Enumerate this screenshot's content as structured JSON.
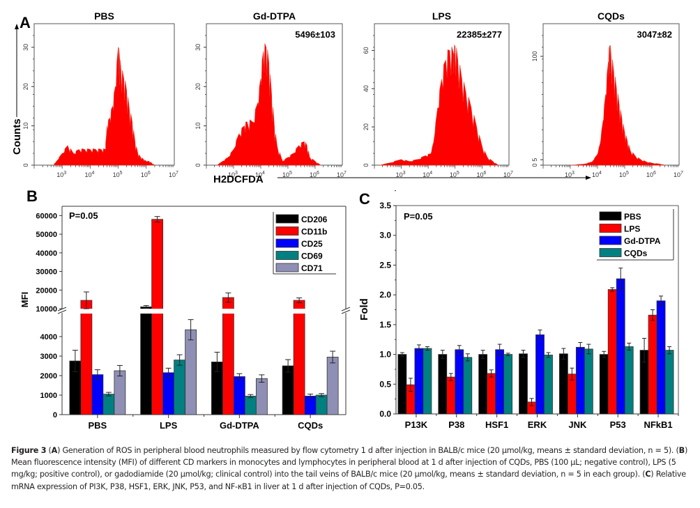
{
  "figure": {
    "panel_labels": {
      "a": "A",
      "b": "B",
      "c": "C"
    },
    "caption": {
      "figure_label": "Figure 3",
      "segments": [
        {
          "t": "Figure 3",
          "b": true
        },
        {
          "t": " (",
          "b": false
        },
        {
          "t": "A",
          "b": true
        },
        {
          "t": ") Generation of ROS in peripheral blood neutrophils measured by flow cytometry 1 d after injection in BALB/c mice (20 μmol/kg, means ± standard deviation, n = 5). (",
          "b": false
        },
        {
          "t": "B",
          "b": true
        },
        {
          "t": ") Mean fluorescence intensity (MFI) of different CD markers in monocytes and lymphocytes in peripheral blood at 1 d after injection of CQDs, PBS (100 μL; negative control), LPS (5 mg/kg; positive control), or gadodiamide (20 μmol/kg; clinical control) into the tail veins of BALB/c mice (20 μmol/kg, means ± standard deviation, n = 5 in each group). (",
          "b": false
        },
        {
          "t": "C",
          "b": true
        },
        {
          "t": ") Relative mRNA expression of PI3K, P38, HSF1, ERK, JNK, P53, and NF-κB1 in liver at 1 d after injection of CQDs, P=0.05.",
          "b": false
        }
      ]
    }
  },
  "colors": {
    "histogram_fill": "#ff0000",
    "black": "#000000",
    "red": "#ff0000",
    "blue": "#0000ff",
    "teal": "#008080",
    "lavender": "#8f8fb5"
  },
  "chart_data": [
    {
      "id": "A",
      "type": "area",
      "subtype": "flow-cytometry-histograms",
      "ylabel": "Counts",
      "xlabel": "H2DCFDA",
      "xscale": "log",
      "xlim": [
        100,
        10000000
      ],
      "xticks": [
        "10^3",
        "10^4",
        "10^5",
        "10^6",
        "10^7"
      ],
      "panels": [
        {
          "title": "PBS",
          "annotation": "",
          "ylim": [
            0,
            36
          ],
          "yticks": [
            0,
            10,
            20,
            30
          ],
          "x": [
            2.7,
            2.8,
            3.0,
            3.2,
            3.4,
            3.6,
            3.8,
            4.0,
            4.2,
            4.4,
            4.55,
            4.6,
            4.7,
            4.8,
            4.9,
            5.0,
            5.05,
            5.1,
            5.2,
            5.3,
            5.4,
            5.5,
            5.6,
            5.7,
            5.8,
            5.9,
            6.0,
            6.1,
            6.2,
            6.3
          ],
          "y": [
            0,
            1,
            3,
            5,
            3,
            4,
            4,
            4,
            4,
            4,
            4,
            10,
            12,
            15,
            20,
            30,
            27,
            24,
            22,
            19,
            14,
            11,
            6,
            3,
            2,
            1.5,
            1,
            1,
            0.5,
            0
          ]
        },
        {
          "title": "Gd-DTPA",
          "annotation": "5496±103",
          "ylim": [
            0,
            36
          ],
          "yticks": [
            0,
            10,
            20,
            30
          ],
          "x": [
            2.4,
            2.6,
            2.8,
            3.0,
            3.2,
            3.4,
            3.5,
            3.7,
            3.9,
            4.0,
            4.1,
            4.2,
            4.3,
            4.4,
            4.5,
            4.6,
            4.8,
            5.0,
            5.2,
            5.4,
            5.6,
            5.7,
            5.8,
            6.0,
            6.2
          ],
          "y": [
            0,
            1,
            2,
            4,
            8,
            10,
            11,
            11,
            16,
            22,
            29,
            30,
            26,
            18,
            10,
            5,
            1,
            2,
            3,
            5,
            6,
            5,
            2,
            1,
            0
          ]
        },
        {
          "title": "LPS",
          "annotation": "22385±277",
          "ylim": [
            0,
            74
          ],
          "yticks": [
            0,
            20,
            40,
            60
          ],
          "x": [
            2.2,
            2.5,
            3.0,
            3.3,
            3.6,
            3.9,
            4.1,
            4.2,
            4.35,
            4.5,
            4.65,
            4.8,
            4.95,
            5.0,
            5.1,
            5.25,
            5.4,
            5.6,
            5.8,
            6.0,
            6.2,
            6.4,
            6.6
          ],
          "y": [
            0,
            1,
            3,
            2,
            3,
            5,
            6,
            12,
            30,
            45,
            55,
            60,
            58,
            62,
            55,
            45,
            38,
            30,
            20,
            10,
            4,
            2,
            0
          ]
        },
        {
          "title": "CQDs",
          "annotation": "3047±82",
          "ylim": [
            0,
            130
          ],
          "yticks": [
            0,
            5,
            100
          ],
          "x": [
            3.0,
            3.5,
            3.8,
            4.0,
            4.1,
            4.2,
            4.3,
            4.4,
            4.45,
            4.5,
            4.6,
            4.7,
            4.8,
            4.9,
            5.0,
            5.1,
            5.2,
            5.4,
            5.6,
            5.8,
            6.0,
            6.3,
            6.5
          ],
          "y": [
            0,
            1,
            3,
            10,
            20,
            40,
            65,
            95,
            110,
            100,
            85,
            70,
            55,
            42,
            30,
            22,
            14,
            8,
            5,
            3,
            2,
            1,
            0
          ]
        }
      ]
    },
    {
      "id": "B",
      "type": "bar",
      "subtype": "grouped-broken-axis",
      "annotation": "P=0.05",
      "ylabel": "MFI",
      "xlabel": "",
      "categories": [
        "PBS",
        "LPS",
        "Gd-DTPA",
        "CQDs"
      ],
      "axis_break": [
        5000,
        10000
      ],
      "lower_ylim": [
        0,
        5000
      ],
      "upper_ylim": [
        10000,
        65000
      ],
      "yticks_lower": [
        0,
        1000,
        2000,
        3000,
        4000
      ],
      "yticks_upper": [
        10000,
        20000,
        30000,
        40000,
        50000,
        60000
      ],
      "legend": {
        "position": "top-right"
      },
      "series": [
        {
          "name": "CD206",
          "color": "#000000",
          "values": [
            2750,
            11000,
            2700,
            2500
          ],
          "errors": [
            550,
            700,
            500,
            320
          ]
        },
        {
          "name": "CD11b",
          "color": "#ff0000",
          "values": [
            14500,
            58000,
            16000,
            14500
          ],
          "errors": [
            4500,
            1500,
            2500,
            1300
          ]
        },
        {
          "name": "CD25",
          "color": "#0000ff",
          "values": [
            2050,
            2150,
            1950,
            950
          ],
          "errors": [
            250,
            230,
            150,
            100
          ]
        },
        {
          "name": "CD69",
          "color": "#008080",
          "values": [
            1050,
            2800,
            950,
            1000
          ],
          "errors": [
            90,
            270,
            80,
            80
          ]
        },
        {
          "name": "CD71",
          "color": "#8f8fb5",
          "values": [
            2250,
            4350,
            1850,
            2950
          ],
          "errors": [
            270,
            520,
            190,
            300
          ]
        }
      ]
    },
    {
      "id": "C",
      "type": "bar",
      "subtype": "grouped",
      "annotation": "P=0.05",
      "ylabel": "Fold",
      "xlabel": "",
      "categories": [
        "P13K",
        "P38",
        "HSF1",
        "ERK",
        "JNK",
        "P53",
        "NFkB1"
      ],
      "ylim": [
        0,
        3.5
      ],
      "yticks": [
        "0.0",
        "0.5",
        "1.0",
        "1.5",
        "2.0",
        "2.5",
        "3.0",
        "3.5"
      ],
      "legend": {
        "position": "top-right"
      },
      "series": [
        {
          "name": "PBS",
          "color": "#000000",
          "values": [
            1.0,
            1.0,
            1.0,
            1.01,
            1.01,
            1.0,
            1.07
          ],
          "errors": [
            0.03,
            0.07,
            0.07,
            0.06,
            0.09,
            0.05,
            0.2
          ]
        },
        {
          "name": "LPS",
          "color": "#ff0000",
          "values": [
            0.49,
            0.62,
            0.68,
            0.2,
            0.67,
            2.09,
            1.66
          ],
          "errors": [
            0.11,
            0.06,
            0.06,
            0.06,
            0.1,
            0.03,
            0.09
          ]
        },
        {
          "name": "Gd-DTPA",
          "color": "#0000ff",
          "values": [
            1.1,
            1.08,
            1.08,
            1.33,
            1.12,
            2.27,
            1.9
          ],
          "errors": [
            0.06,
            0.07,
            0.09,
            0.08,
            0.08,
            0.18,
            0.08
          ]
        },
        {
          "name": "CQDs",
          "color": "#008080",
          "values": [
            1.1,
            0.95,
            1.0,
            0.99,
            1.09,
            1.13,
            1.07
          ],
          "errors": [
            0.03,
            0.06,
            0.02,
            0.04,
            0.08,
            0.06,
            0.06
          ]
        }
      ]
    }
  ]
}
